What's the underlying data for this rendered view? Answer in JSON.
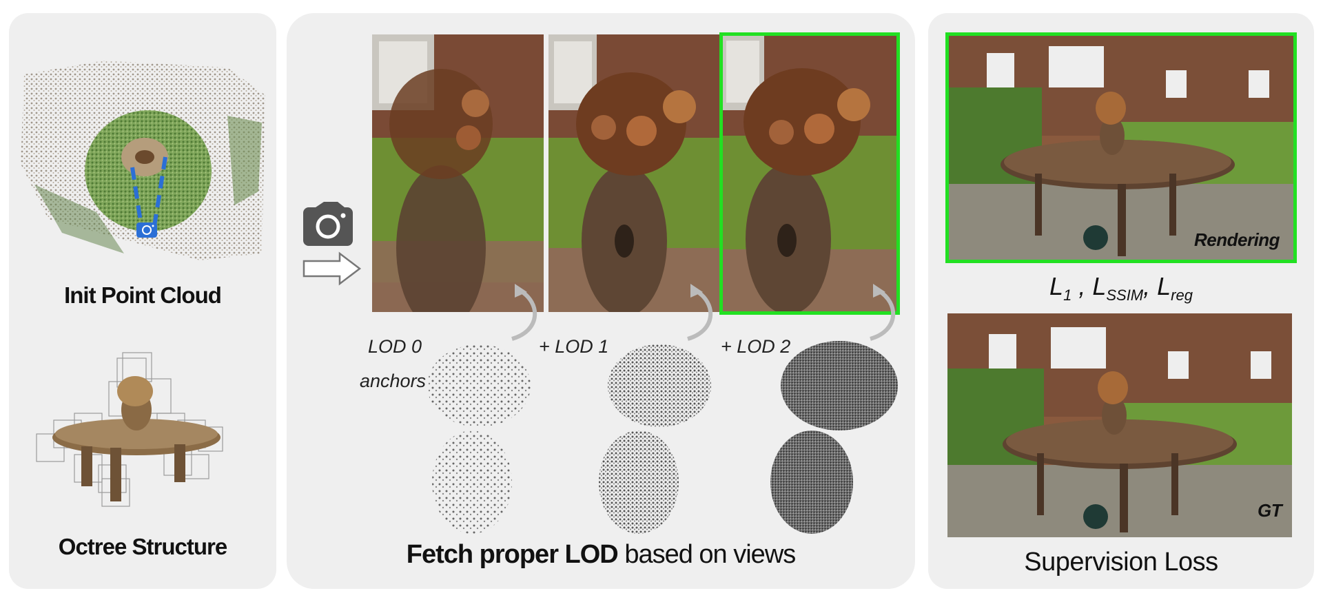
{
  "left_panel": {
    "init_caption": "Init Point Cloud",
    "octree_caption": "Octree Structure"
  },
  "middle_panel": {
    "lod_labels": [
      "LOD 0",
      "anchors",
      "+ LOD 1",
      "+ LOD 2"
    ],
    "caption_bold": "Fetch proper LOD",
    "caption_rest": " based on views"
  },
  "right_panel": {
    "rendering_tag": "Rendering",
    "loss_terms": [
      "L",
      "1",
      " , L",
      "SSIM",
      ", L",
      "reg"
    ],
    "gt_tag": "GT",
    "caption": "Supervision Loss"
  },
  "colors": {
    "panel_bg": "#efefef",
    "highlight_green": "#22e022",
    "camera_blue": "#2b6fd6"
  }
}
